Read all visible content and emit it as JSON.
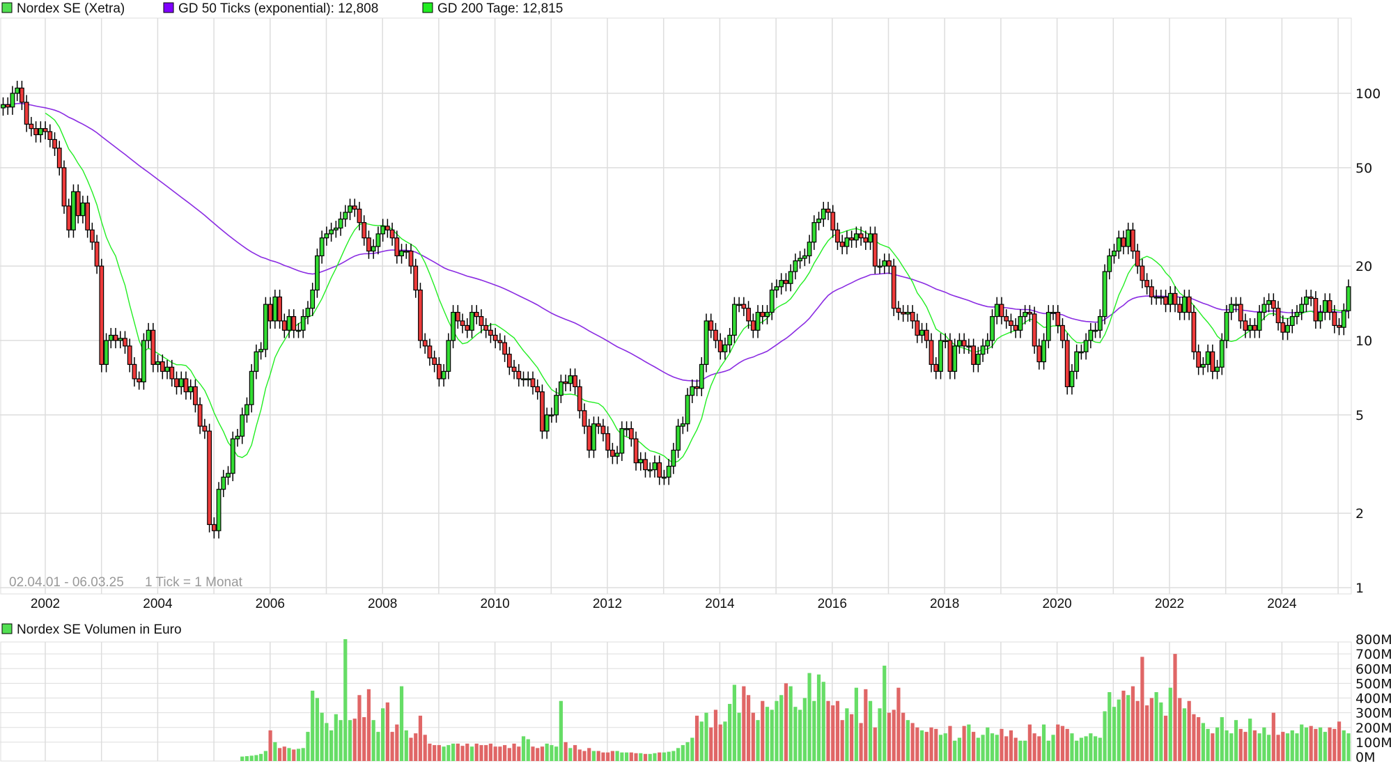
{
  "legend": {
    "main": "Nordex SE (Xetra)",
    "ema50": "GD 50 Ticks (exponential): 12,808",
    "sma200": "GD 200 Tage: 12,815",
    "volume": "Nordex SE Volumen in Euro"
  },
  "info": {
    "range": "02.04.01 - 06.03.25",
    "tick": "1 Tick = 1 Monat"
  },
  "colors": {
    "up": "#33dd33",
    "down": "#ee3b3b",
    "ema50": "#8a2be2",
    "sma200": "#22ee22",
    "vol_up": "#66dd66",
    "vol_down": "#e06666",
    "grid": "#dddddd"
  },
  "chart_data": [
    {
      "type": "candlestick",
      "title": "Nordex SE (Xetra)",
      "start": "2001-04",
      "interval": "1 Monat",
      "scale": "log",
      "ylim": [
        1,
        130
      ],
      "y_ticks": [
        "100",
        "50",
        "20",
        "10",
        "5",
        "2",
        "1"
      ],
      "x_ticks": [
        "2002",
        "2004",
        "2006",
        "2008",
        "2010",
        "2012",
        "2014",
        "2016",
        "2018",
        "2020",
        "2022",
        "2024"
      ],
      "grid": true,
      "legend_placement": "top-left",
      "series": [
        {
          "name": "GD 50 Ticks (exponential)",
          "last": 12.808
        },
        {
          "name": "GD 200 Tage",
          "last": 12.815
        }
      ],
      "close": [
        90,
        88,
        100,
        105,
        92,
        75,
        72,
        68,
        72,
        70,
        65,
        60,
        50,
        35,
        28,
        40,
        32,
        36,
        28,
        25,
        20,
        8,
        10,
        10.5,
        10,
        10.2,
        9.5,
        8,
        7,
        6.8,
        10,
        11,
        8,
        8.2,
        7.5,
        7.8,
        7,
        6.5,
        7,
        6.2,
        6.5,
        5.5,
        4.5,
        4.3,
        1.8,
        1.7,
        2.5,
        2.8,
        2.9,
        4,
        4.1,
        5,
        5.5,
        7.5,
        9,
        9.2,
        14,
        12,
        15,
        12,
        11,
        12.5,
        11,
        11,
        12.5,
        13.5,
        16,
        22,
        26,
        27,
        28,
        28.5,
        31,
        33,
        35,
        34,
        30,
        26,
        23,
        24,
        27,
        29,
        28,
        26,
        22,
        23,
        23,
        20,
        16,
        10,
        9.5,
        8.5,
        8,
        7,
        7.5,
        10,
        13,
        12,
        11.5,
        11,
        13,
        12.5,
        11.5,
        11,
        10.5,
        10,
        9.8,
        8.8,
        7.8,
        7.5,
        7,
        7,
        7,
        6.5,
        6.2,
        4.3,
        5,
        5,
        6,
        6.8,
        6.7,
        7.2,
        6.5,
        5.2,
        4.5,
        3.6,
        4.6,
        4.5,
        4.2,
        3.6,
        3.4,
        3.5,
        4.4,
        4.4,
        4.0,
        3.2,
        3.3,
        3.0,
        3.0,
        3.2,
        2.8,
        2.8,
        3.1,
        3.6,
        4.5,
        4.6,
        6,
        6.5,
        6.4,
        8,
        12,
        11,
        10,
        9,
        9.6,
        10.5,
        14,
        14,
        13.5,
        12,
        11,
        13,
        12.5,
        13,
        16,
        16.5,
        17.5,
        17,
        19,
        21,
        21.5,
        22,
        25,
        30,
        31,
        34,
        33,
        28,
        25,
        24,
        26,
        25.5,
        27,
        26,
        25,
        27,
        20,
        20,
        21,
        20,
        13.5,
        13,
        12.8,
        13,
        12,
        10.5,
        11,
        10,
        8,
        7.5,
        10,
        10,
        7.5,
        9.5,
        10,
        9.5,
        9.5,
        8,
        8.8,
        9.5,
        10,
        12.5,
        14,
        12.5,
        12,
        11.5,
        11,
        12.5,
        13,
        12.8,
        9.5,
        8.2,
        10,
        13,
        13,
        11.5,
        10,
        6.5,
        7.5,
        9,
        9,
        10,
        11,
        11,
        12.5,
        19,
        22,
        23,
        26,
        24,
        28,
        23,
        20,
        17.5,
        16.5,
        15,
        15,
        15,
        14,
        15.5,
        14,
        13,
        15,
        13,
        9,
        7.8,
        8,
        9,
        7.5,
        7.8,
        10,
        13,
        14,
        14,
        12,
        11,
        11.5,
        11,
        13,
        14,
        14.5,
        13.5,
        11.8,
        10.8,
        11.5,
        12.5,
        13,
        14,
        15,
        14.8,
        12,
        13,
        14.5,
        13,
        11.5,
        11.3,
        13.2,
        16.5
      ]
    },
    {
      "type": "bar",
      "title": "Nordex SE Volumen in Euro",
      "unit": "M",
      "ylim": [
        0,
        800
      ],
      "y_ticks": [
        "800M",
        "700M",
        "600M",
        "500M",
        "400M",
        "300M",
        "200M",
        "100M",
        "0M"
      ],
      "values": [
        0,
        0,
        0,
        0,
        0,
        0,
        0,
        0,
        0,
        0,
        0,
        0,
        0,
        0,
        0,
        0,
        0,
        0,
        0,
        0,
        0,
        0,
        0,
        0,
        0,
        0,
        0,
        0,
        0,
        0,
        0,
        0,
        0,
        0,
        0,
        0,
        0,
        0,
        0,
        0,
        0,
        0,
        0,
        0,
        0,
        0,
        0,
        0,
        0,
        0,
        0,
        2,
        5,
        8,
        12,
        20,
        40,
        180,
        100,
        60,
        70,
        60,
        50,
        55,
        60,
        170,
        450,
        400,
        300,
        230,
        180,
        290,
        250,
        800,
        250,
        260,
        420,
        270,
        460,
        250,
        170,
        330,
        370,
        170,
        220,
        480,
        180,
        130,
        160,
        280,
        150,
        90,
        80,
        80,
        70,
        80,
        90,
        90,
        75,
        90,
        70,
        90,
        80,
        80,
        90,
        70,
        70,
        80,
        60,
        90,
        70,
        140,
        120,
        70,
        60,
        70,
        90,
        80,
        70,
        380,
        100,
        60,
        80,
        50,
        40,
        60,
        40,
        40,
        30,
        30,
        40,
        40,
        30,
        30,
        30,
        25,
        25,
        20,
        20,
        25,
        30,
        30,
        35,
        40,
        60,
        80,
        100,
        130,
        280,
        240,
        300,
        200,
        320,
        220,
        240,
        360,
        490,
        300,
        480,
        420,
        300,
        250,
        380,
        340,
        320,
        380,
        420,
        500,
        480,
        340,
        320,
        400,
        570,
        380,
        560,
        510,
        380,
        350,
        380,
        250,
        330,
        290,
        470,
        230,
        460,
        380,
        200,
        330,
        620,
        300,
        320,
        470,
        300,
        250,
        230,
        200,
        180,
        170,
        200,
        190,
        150,
        160,
        210,
        110,
        130,
        210,
        220,
        170,
        130,
        150,
        200,
        160,
        150,
        190,
        140,
        180,
        130,
        110,
        110,
        220,
        160,
        140,
        220,
        110,
        150,
        220,
        210,
        190,
        160,
        110,
        130,
        140,
        160,
        140,
        130,
        310,
        440,
        340,
        390,
        450,
        420,
        480,
        380,
        680,
        350,
        400,
        440,
        370,
        280,
        470,
        700,
        400,
        330,
        380,
        290,
        270,
        230,
        190,
        160,
        200,
        270,
        180,
        160,
        250,
        190,
        170,
        260,
        180,
        160,
        200,
        150,
        300,
        150,
        170,
        160,
        180,
        160,
        220,
        200,
        210,
        190,
        200,
        170,
        200,
        190,
        240,
        180,
        160
      ]
    }
  ]
}
